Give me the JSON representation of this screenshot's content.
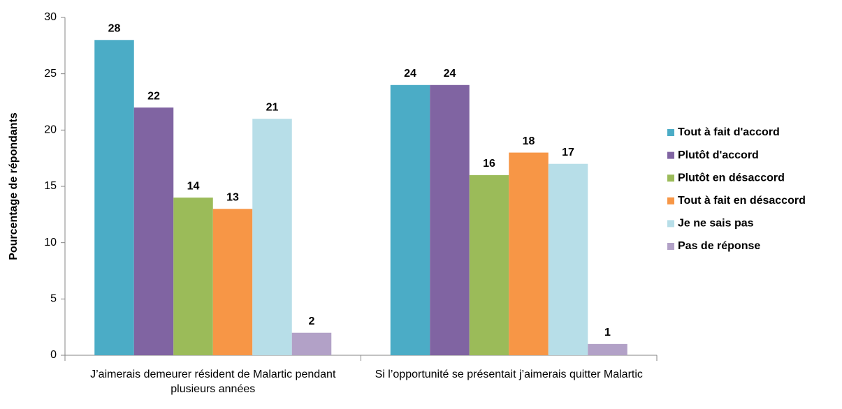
{
  "chart_data": {
    "type": "bar",
    "y_label": "Pourcentage de répondants",
    "categories": [
      "J’aimerais demeurer résident de Malartic pendant plusieurs années",
      "Si l’opportunité se présentait j’aimerais quitter Malartic"
    ],
    "series": [
      {
        "name": "Tout à fait d'accord",
        "color": "#4bacc6",
        "values": [
          28,
          24
        ]
      },
      {
        "name": "Plutôt d'accord",
        "color": "#8064a2",
        "values": [
          22,
          24
        ]
      },
      {
        "name": "Plutôt en désaccord",
        "color": "#9bbb59",
        "values": [
          14,
          16
        ]
      },
      {
        "name": "Tout à fait en désaccord",
        "color": "#f79646",
        "values": [
          13,
          18
        ]
      },
      {
        "name": "Je ne sais pas",
        "color": "#b7dee8",
        "values": [
          21,
          17
        ]
      },
      {
        "name": "Pas de réponse",
        "color": "#b2a1c7",
        "values": [
          2,
          1
        ]
      }
    ],
    "ylim": [
      0,
      30
    ],
    "yticks": [
      0,
      5,
      10,
      15,
      20,
      25,
      30
    ],
    "grid": false,
    "legend": "right"
  }
}
